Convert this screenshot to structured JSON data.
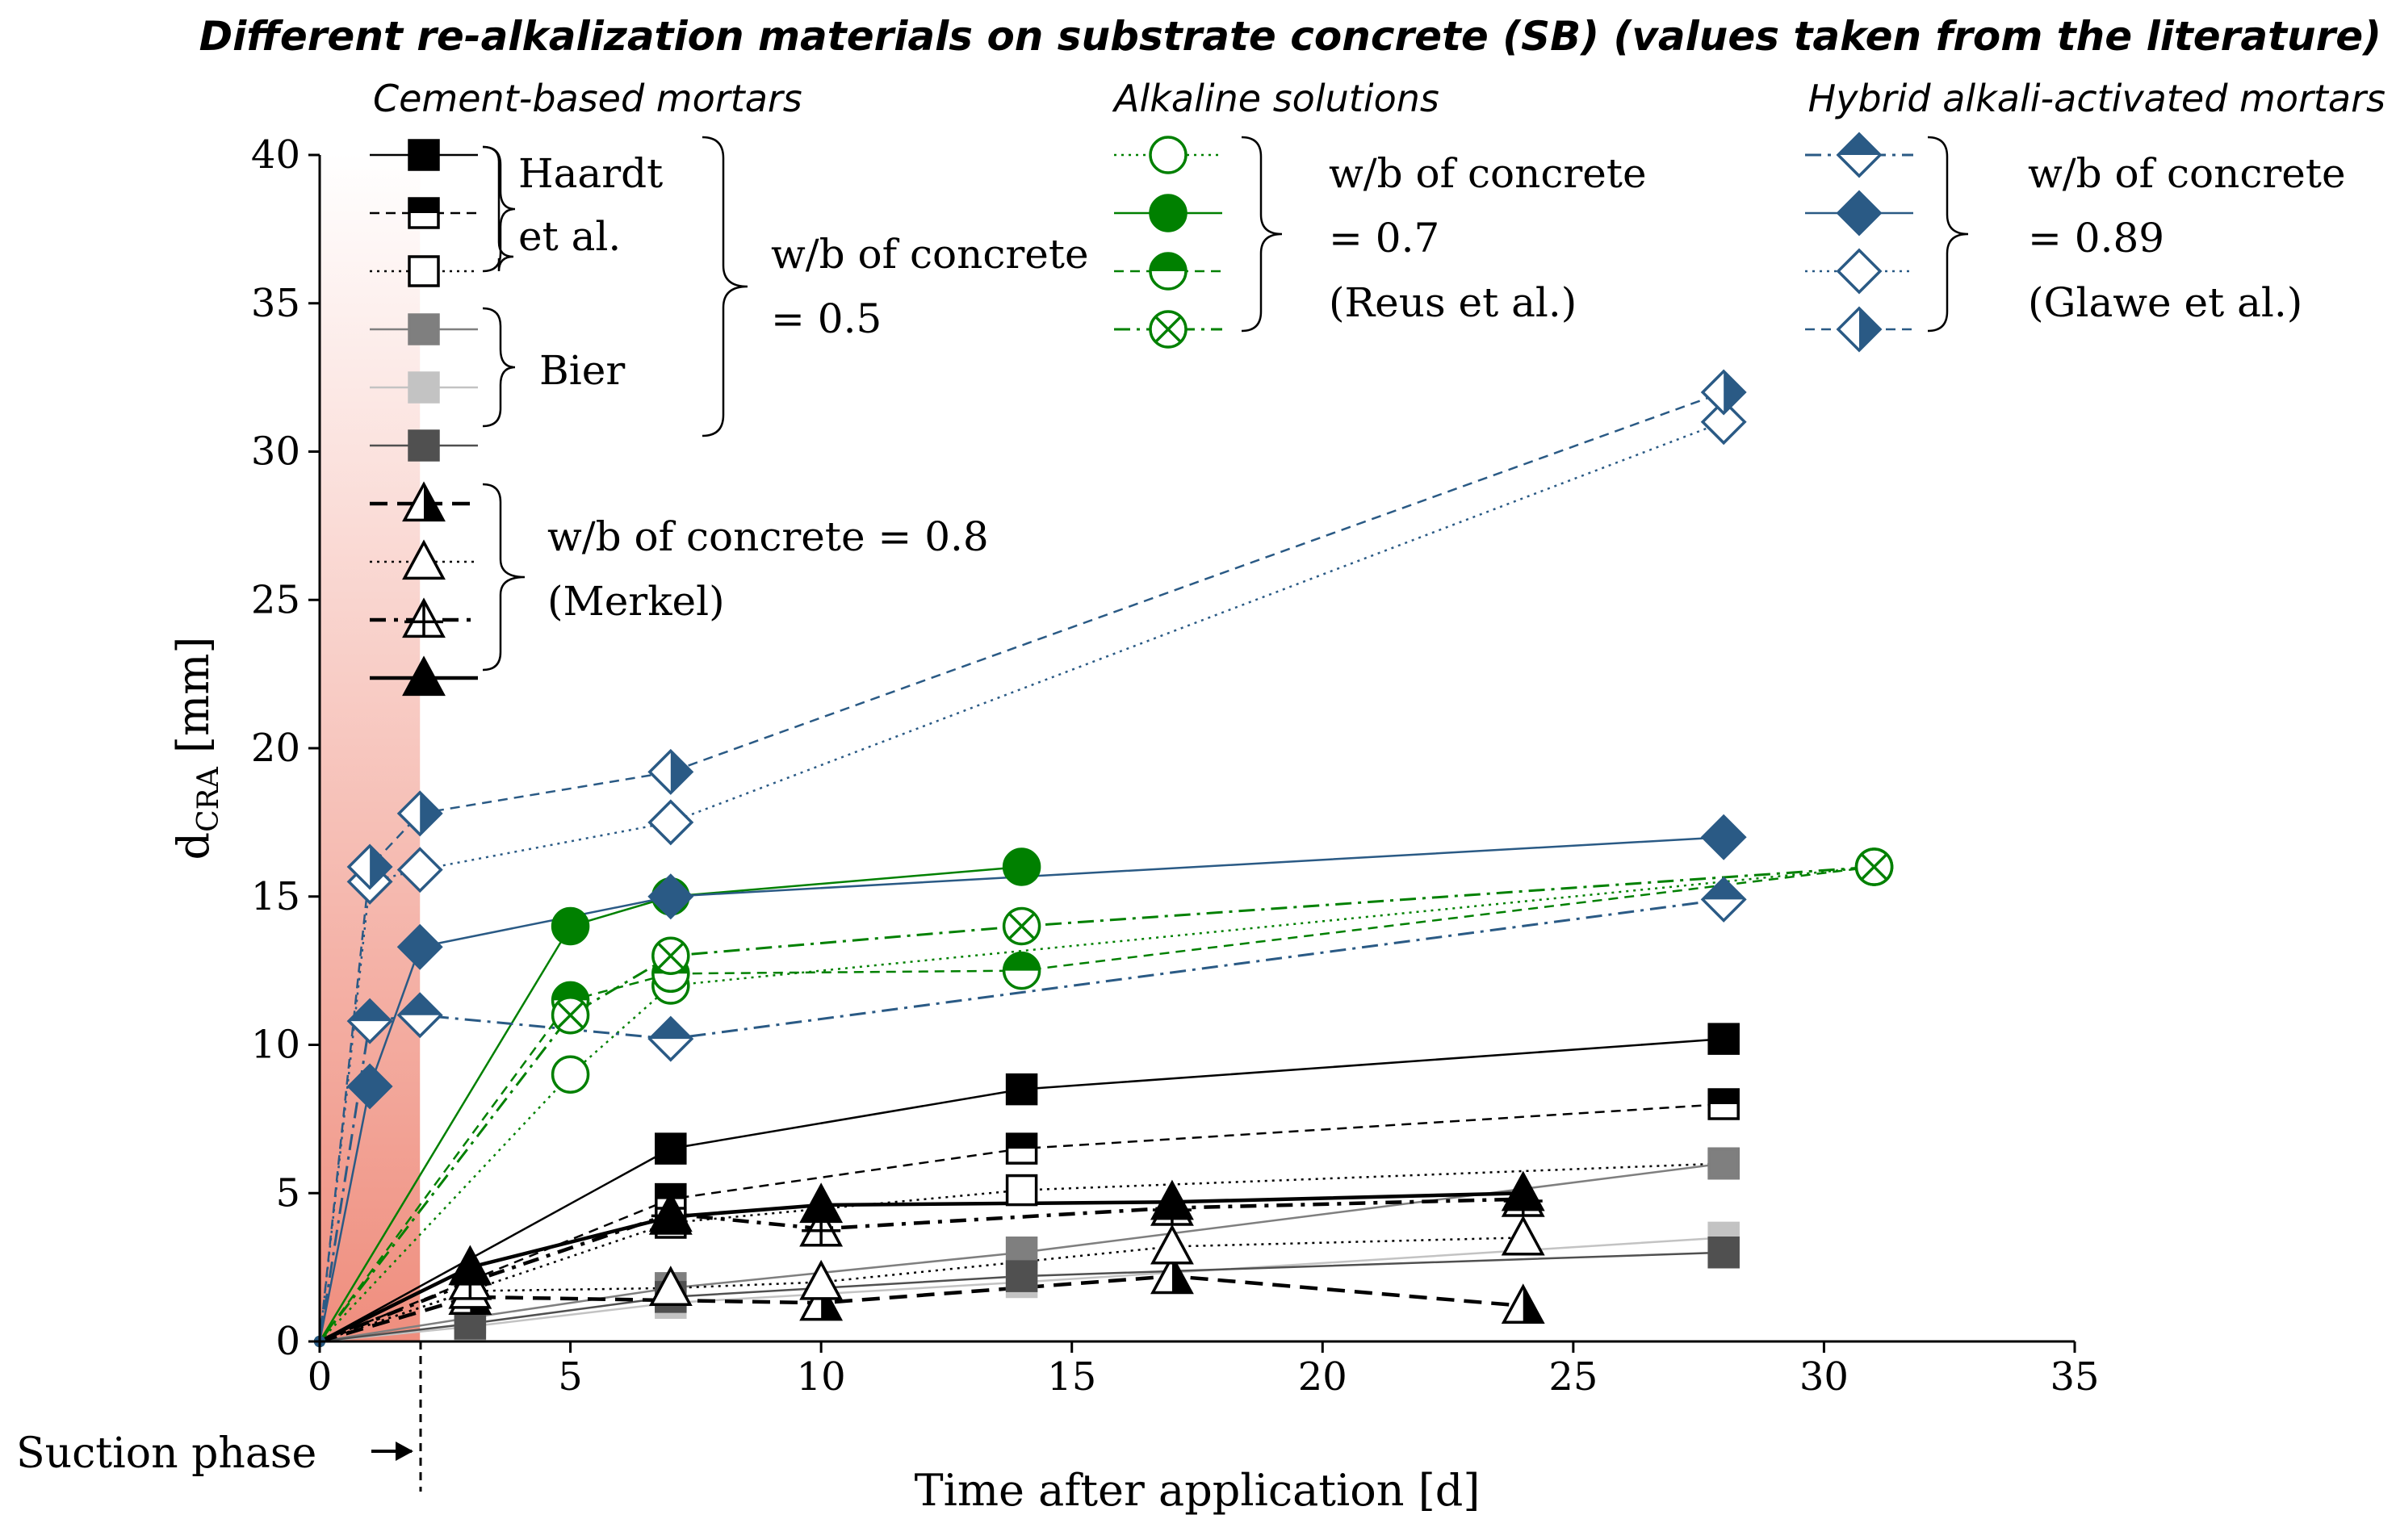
{
  "chart_data": {
    "type": "line",
    "title": "Different re-alkalization materials on substrate concrete (SB) (values taken from the literature)",
    "xlabel": "Time after application [d]",
    "ylabel_main": "d",
    "ylabel_sub": "CRA",
    "ylabel_unit": " [mm]",
    "xlim": [
      0,
      35
    ],
    "ylim": [
      0,
      40
    ],
    "xticks": [
      0,
      5,
      10,
      15,
      20,
      25,
      30,
      35
    ],
    "yticks": [
      0,
      5,
      10,
      15,
      20,
      25,
      30,
      35,
      40
    ],
    "suction_phase_label": "Suction phase",
    "suction_phase_end_day": 2,
    "groups": [
      {
        "label": "Cement-based mortars"
      },
      {
        "label": "Alkaline solutions"
      },
      {
        "label": "Hybrid alkali-activated mortars"
      }
    ],
    "annotations": [
      {
        "id": "haardt",
        "lines": [
          "Haardt",
          "et al."
        ]
      },
      {
        "id": "bier",
        "lines": [
          "Bier"
        ]
      },
      {
        "id": "wb05",
        "lines": [
          "w/b of concrete",
          "= 0.5"
        ]
      },
      {
        "id": "merkel",
        "lines": [
          "w/b of concrete = 0.8",
          "(Merkel)"
        ]
      },
      {
        "id": "reus",
        "lines": [
          "w/b of concrete",
          "= 0.7",
          "(Reus et al.)"
        ]
      },
      {
        "id": "glawe",
        "lines": [
          "w/b of concrete",
          "= 0.89",
          "(Glawe et al.)"
        ]
      }
    ],
    "colors": {
      "black": "#000000",
      "green": "#008000",
      "blue": "#2a5a85",
      "grey1": "#7f7f7f",
      "grey2": "#c3c3c3",
      "grey3": "#505050",
      "suction_top": "#ffffff",
      "suction_bottom": "#ef8e7e"
    },
    "series": [
      {
        "name": "Haardt et al. 1",
        "group": "cement",
        "color": "#000000",
        "dash": "solid",
        "marker": "square",
        "fill": "full",
        "x": [
          0,
          7,
          14,
          28
        ],
        "y": [
          0,
          6.5,
          8.5,
          10.2
        ]
      },
      {
        "name": "Haardt et al. 2",
        "group": "cement",
        "color": "#000000",
        "dash": "dashed",
        "marker": "square",
        "fill": "top",
        "x": [
          0,
          7,
          14,
          28
        ],
        "y": [
          0,
          4.8,
          6.5,
          8
        ]
      },
      {
        "name": "Haardt et al. 3",
        "group": "cement",
        "color": "#000000",
        "dash": "dotted",
        "marker": "square",
        "fill": "none",
        "x": [
          0,
          7,
          14,
          28
        ],
        "y": [
          0,
          4,
          5.1,
          6
        ]
      },
      {
        "name": "Bier 1",
        "group": "cement",
        "color": "#7f7f7f",
        "dash": "solid",
        "marker": "square",
        "fill": "full",
        "x": [
          0,
          3,
          7,
          14,
          28
        ],
        "y": [
          0,
          0.8,
          1.8,
          3,
          6
        ]
      },
      {
        "name": "Bier 2",
        "group": "cement",
        "color": "#c3c3c3",
        "dash": "solid",
        "marker": "square",
        "fill": "full",
        "x": [
          0,
          3,
          7,
          14,
          28
        ],
        "y": [
          0,
          0.5,
          1.3,
          2,
          3.5
        ]
      },
      {
        "name": "Bier 3",
        "group": "cement",
        "color": "#505050",
        "dash": "solid",
        "marker": "square",
        "fill": "full",
        "x": [
          0,
          3,
          7,
          14,
          28
        ],
        "y": [
          0,
          0.6,
          1.5,
          2.2,
          3
        ]
      },
      {
        "name": "Merkel 1",
        "group": "cement",
        "color": "#000000",
        "dash": "dashed-bold",
        "marker": "triangle",
        "fill": "right",
        "x": [
          0,
          3,
          10,
          17,
          24
        ],
        "y": [
          0,
          1.5,
          1.3,
          2.2,
          1.2
        ]
      },
      {
        "name": "Merkel 2",
        "group": "cement",
        "color": "#000000",
        "dash": "dotted",
        "marker": "triangle",
        "fill": "none",
        "x": [
          0,
          3,
          7,
          10,
          17,
          24
        ],
        "y": [
          0,
          1.7,
          1.8,
          2,
          3.2,
          3.5
        ]
      },
      {
        "name": "Merkel 3",
        "group": "cement",
        "color": "#000000",
        "dash": "dashdot-bold",
        "marker": "triangle",
        "fill": "cross",
        "x": [
          0,
          3,
          7,
          10,
          17,
          24
        ],
        "y": [
          0,
          2,
          4.3,
          3.8,
          4.5,
          4.8
        ]
      },
      {
        "name": "Merkel 4",
        "group": "cement",
        "color": "#000000",
        "dash": "solid-bold",
        "marker": "triangle",
        "fill": "full",
        "x": [
          0,
          3,
          7,
          10,
          17,
          24
        ],
        "y": [
          0,
          2.5,
          4.2,
          4.6,
          4.7,
          5
        ]
      },
      {
        "name": "Reus et al. 1",
        "group": "alkaline",
        "color": "#008000",
        "dash": "dotted",
        "marker": "circle",
        "fill": "none",
        "x": [
          0,
          5,
          7,
          31
        ],
        "y": [
          0,
          9,
          12,
          16
        ]
      },
      {
        "name": "Reus et al. 2",
        "group": "alkaline",
        "color": "#008000",
        "dash": "solid",
        "marker": "circle",
        "fill": "full",
        "x": [
          0,
          5,
          7,
          14
        ],
        "y": [
          0,
          14,
          15,
          16
        ]
      },
      {
        "name": "Reus et al. 3",
        "group": "alkaline",
        "color": "#008000",
        "dash": "dashed",
        "marker": "circle",
        "fill": "top",
        "x": [
          0,
          5,
          7,
          14,
          31
        ],
        "y": [
          0,
          11.5,
          12.4,
          12.5,
          16
        ]
      },
      {
        "name": "Reus et al. 4",
        "group": "alkaline",
        "color": "#008000",
        "dash": "dashdot",
        "marker": "circle",
        "fill": "cross",
        "x": [
          0,
          5,
          7,
          14,
          31
        ],
        "y": [
          0,
          11,
          13,
          14,
          16
        ]
      },
      {
        "name": "Glawe et al. 1",
        "group": "hybrid",
        "color": "#2a5a85",
        "dash": "dashdot",
        "marker": "diamond",
        "fill": "top",
        "x": [
          0,
          1,
          2,
          7,
          28
        ],
        "y": [
          0,
          10.8,
          11,
          10.2,
          14.9
        ]
      },
      {
        "name": "Glawe et al. 2",
        "group": "hybrid",
        "color": "#2a5a85",
        "dash": "solid",
        "marker": "diamond",
        "fill": "full",
        "x": [
          0,
          1,
          2,
          7,
          28
        ],
        "y": [
          0,
          8.6,
          13.3,
          15,
          17
        ]
      },
      {
        "name": "Glawe et al. 3",
        "group": "hybrid",
        "color": "#2a5a85",
        "dash": "dotted",
        "marker": "diamond",
        "fill": "none",
        "x": [
          0,
          1,
          2,
          7,
          28
        ],
        "y": [
          0,
          15.5,
          15.9,
          17.5,
          31
        ]
      },
      {
        "name": "Glawe et al. 4",
        "group": "hybrid",
        "color": "#2a5a85",
        "dash": "dashed",
        "marker": "diamond",
        "fill": "right",
        "x": [
          0,
          1,
          2,
          7,
          28
        ],
        "y": [
          0,
          16,
          17.8,
          19.2,
          32
        ]
      }
    ]
  }
}
